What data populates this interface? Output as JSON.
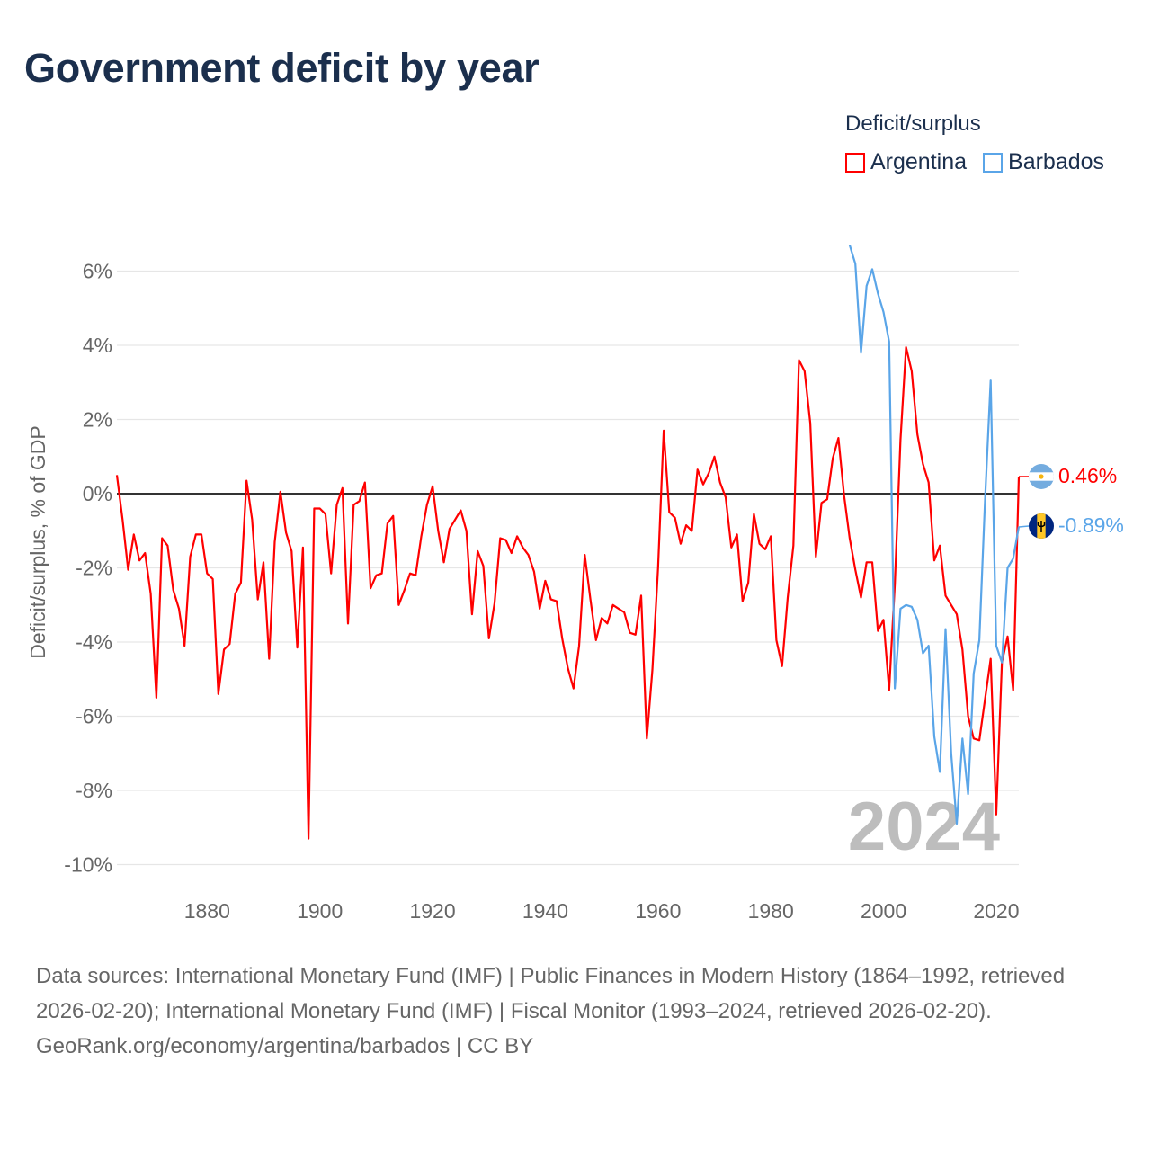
{
  "title": "Government deficit by year",
  "chart_data": {
    "type": "line",
    "title": "Government deficit by year",
    "xlabel": "",
    "ylabel": "Deficit/surplus, % of GDP",
    "xlim": [
      1864,
      2024
    ],
    "ylim": [
      -10,
      6.9
    ],
    "yticks": [
      6,
      4,
      2,
      0,
      -2,
      -4,
      -6,
      -8,
      -10
    ],
    "ytick_labels": [
      "6%",
      "4%",
      "2%",
      "0%",
      "-2%",
      "-4%",
      "-6%",
      "-8%",
      "-10%"
    ],
    "xticks": [
      1880,
      1900,
      1920,
      1940,
      1960,
      1980,
      2000,
      2020
    ],
    "xtick_labels": [
      "1880",
      "1900",
      "1920",
      "1940",
      "1960",
      "1980",
      "2000",
      "2020"
    ],
    "grid": true,
    "legend_title": "Deficit/surplus",
    "legend_position": "top-right",
    "current_year_label": "2024",
    "series": [
      {
        "name": "Argentina",
        "color": "#ff0000",
        "start_year": 1864,
        "end_label": "0.46%",
        "values": [
          0.5,
          -0.7,
          -2.05,
          -1.1,
          -1.8,
          -1.6,
          -2.7,
          -5.5,
          -1.2,
          -1.4,
          -2.6,
          -3.1,
          -4.1,
          -1.7,
          -1.1,
          -1.1,
          -2.15,
          -2.3,
          -5.4,
          -4.2,
          -4.05,
          -2.7,
          -2.4,
          0.35,
          -0.7,
          -2.85,
          -1.85,
          -4.45,
          -1.3,
          0.05,
          -1.05,
          -1.55,
          -4.15,
          -1.45,
          -9.3,
          -0.4,
          -0.4,
          -0.55,
          -2.15,
          -0.3,
          0.15,
          -3.5,
          -0.3,
          -0.2,
          0.3,
          -2.55,
          -2.2,
          -2.15,
          -0.8,
          -0.6,
          -3.0,
          -2.6,
          -2.15,
          -2.2,
          -1.15,
          -0.3,
          0.2,
          -1.0,
          -1.85,
          -0.95,
          -0.7,
          -0.45,
          -1.0,
          -3.25,
          -1.55,
          -1.95,
          -3.9,
          -2.95,
          -1.2,
          -1.25,
          -1.6,
          -1.15,
          -1.45,
          -1.65,
          -2.1,
          -3.1,
          -2.35,
          -2.85,
          -2.9,
          -3.9,
          -4.7,
          -5.25,
          -4.1,
          -1.65,
          -2.85,
          -3.95,
          -3.35,
          -3.5,
          -3.0,
          -3.1,
          -3.2,
          -3.75,
          -3.8,
          -2.75,
          -6.6,
          -4.75,
          -2.0,
          1.7,
          -0.5,
          -0.65,
          -1.35,
          -0.85,
          -1.0,
          0.65,
          0.25,
          0.55,
          1.0,
          0.3,
          -0.1,
          -1.45,
          -1.1,
          -2.9,
          -2.4,
          -0.55,
          -1.35,
          -1.5,
          -1.15,
          -3.95,
          -4.65,
          -2.8,
          -1.4,
          3.6,
          3.3,
          1.9,
          -1.7,
          -0.25,
          -0.15,
          0.95,
          1.5,
          -0.05,
          -1.2,
          -2.05,
          -2.8,
          -1.85,
          -1.85,
          -3.7,
          -3.4,
          -5.3,
          -2.45,
          1.45,
          3.95,
          3.3,
          1.6,
          0.8,
          0.3,
          -1.8,
          -1.4,
          -2.75,
          -3.0,
          -3.25,
          -4.2,
          -6.0,
          -6.6,
          -6.65,
          -5.55,
          -4.45,
          -8.65,
          -4.55,
          -3.85,
          -5.3,
          0.46
        ]
      },
      {
        "name": "Barbados",
        "color": "#5aa5e8",
        "start_year": 1994,
        "end_label": "-0.89%",
        "values": [
          6.7,
          6.2,
          3.8,
          5.6,
          6.05,
          5.4,
          4.9,
          4.1,
          -5.25,
          -3.1,
          -3.0,
          -3.05,
          -3.4,
          -4.3,
          -4.1,
          -6.55,
          -7.5,
          -3.65,
          -7.0,
          -8.9,
          -6.6,
          -8.1,
          -4.85,
          -3.95,
          -0.2,
          3.05,
          -4.1,
          -4.55,
          -2.0,
          -1.75,
          -0.89
        ]
      }
    ]
  },
  "footer": {
    "sources": "Data sources: International Monetary Fund (IMF) | Public Finances in Modern History (1864–1992, retrieved 2026-02-20); International Monetary Fund (IMF) | Fiscal Monitor (1993–2024, retrieved 2026-02-20).",
    "credit": "GeoRank.org/economy/argentina/barbados | CC BY"
  }
}
